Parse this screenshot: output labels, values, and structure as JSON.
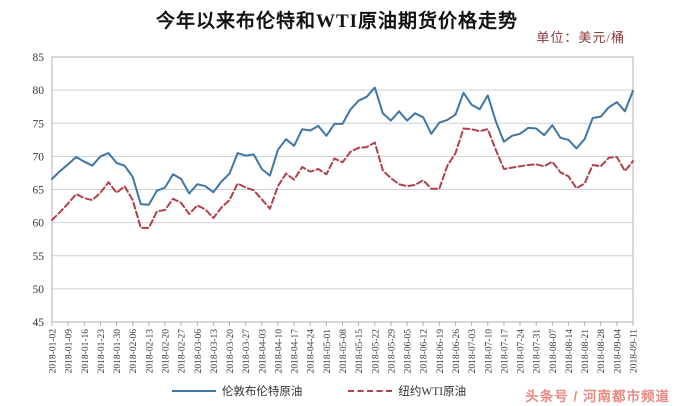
{
  "title": "今年以来布伦特和WTI原油期货价格走势",
  "unit_label": "单位：美元/桶",
  "watermark": "头条号 / 河南都市频道",
  "colors": {
    "brent": "#4076a4",
    "wti": "#b2404a",
    "unit_text": "#8b3a3a",
    "watermark_text": "#e4766e",
    "grid": "#cdd0d6",
    "axis": "#b0b3ba",
    "tick_text": "#3a3a3a",
    "title_text": "#121212"
  },
  "chart_data": {
    "type": "line",
    "title": "今年以来布伦特和WTI原油期货价格走势",
    "unit": "美元/桶",
    "ylim": [
      45,
      85
    ],
    "y_ticks": [
      45,
      50,
      55,
      60,
      65,
      70,
      75,
      80,
      85
    ],
    "grid": true,
    "legend_position": "bottom",
    "x_range": [
      "2018-01-02",
      "2018-09-11"
    ],
    "x_tick_labels": [
      "2018-01-02",
      "2018-01-09",
      "2018-01-16",
      "2018-01-23",
      "2018-01-30",
      "2018-02-06",
      "2018-02-13",
      "2018-02-20",
      "2018-02-27",
      "2018-03-06",
      "2018-03-13",
      "2018-03-20",
      "2018-03-27",
      "2018-04-03",
      "2018-04-10",
      "2018-04-17",
      "2018-04-24",
      "2018-05-01",
      "2018-05-08",
      "2018-05-15",
      "2018-05-22",
      "2018-05-29",
      "2018-06-05",
      "2018-06-12",
      "2018-06-19",
      "2018-06-26",
      "2018-07-03",
      "2018-07-10",
      "2018-07-17",
      "2018-07-24",
      "2018-07-31",
      "2018-08-07",
      "2018-08-14",
      "2018-08-21",
      "2018-08-28",
      "2018-09-04",
      "2018-09-11"
    ],
    "series": [
      {
        "id": "brent",
        "name": "伦敦布伦特原油",
        "color": "#4076a4",
        "line_style": "solid",
        "values": [
          66.6,
          67.8,
          68.8,
          69.9,
          69.2,
          68.6,
          70.0,
          70.5,
          69.0,
          68.6,
          66.9,
          62.8,
          62.7,
          64.8,
          65.3,
          67.3,
          66.6,
          64.4,
          65.8,
          65.5,
          64.6,
          66.2,
          67.4,
          70.5,
          70.1,
          70.3,
          68.1,
          67.1,
          71.0,
          72.6,
          71.6,
          74.1,
          73.9,
          74.6,
          73.1,
          74.9,
          74.9,
          77.1,
          78.4,
          79.0,
          80.4,
          76.5,
          75.4,
          76.8,
          75.4,
          76.5,
          75.9,
          73.4,
          75.1,
          75.5,
          76.3,
          79.6,
          77.8,
          77.1,
          79.2,
          75.3,
          72.2,
          73.1,
          73.4,
          74.3,
          74.2,
          73.2,
          74.7,
          72.8,
          72.5,
          71.2,
          72.6,
          75.8,
          76.0,
          77.4,
          78.2,
          76.8,
          79.9
        ]
      },
      {
        "id": "wti",
        "name": "纽约WTI原油",
        "color": "#b2404a",
        "line_style": "dashed",
        "values": [
          60.4,
          61.6,
          62.9,
          64.3,
          63.7,
          63.4,
          64.5,
          66.1,
          64.5,
          65.5,
          63.4,
          59.2,
          59.2,
          61.7,
          61.9,
          63.6,
          63.0,
          61.3,
          62.6,
          62.0,
          60.7,
          62.3,
          63.4,
          65.9,
          65.3,
          64.9,
          63.5,
          62.1,
          65.5,
          67.4,
          66.5,
          68.4,
          67.7,
          68.1,
          67.3,
          69.7,
          69.1,
          70.7,
          71.3,
          71.4,
          72.1,
          67.9,
          66.7,
          65.8,
          65.5,
          65.7,
          66.4,
          65.1,
          65.1,
          68.6,
          70.5,
          74.2,
          74.1,
          73.8,
          74.1,
          71.0,
          68.1,
          68.3,
          68.5,
          68.7,
          68.8,
          68.5,
          69.2,
          67.6,
          67.0,
          65.2,
          65.9,
          68.7,
          68.5,
          69.8,
          69.9,
          67.8,
          69.3
        ]
      }
    ]
  }
}
